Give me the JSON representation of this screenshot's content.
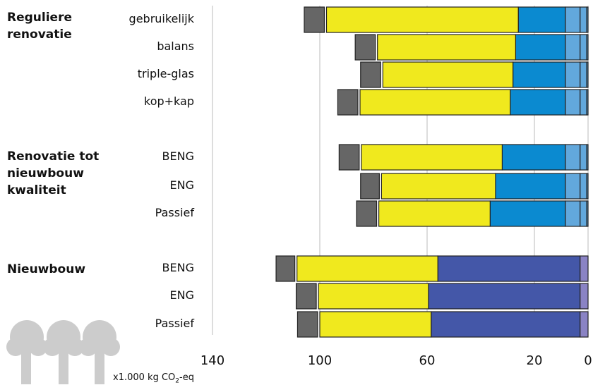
{
  "chart_data": {
    "type": "bar",
    "orientation": "horizontal",
    "stacked": true,
    "x_direction": "reversed",
    "xlim": [
      0,
      140
    ],
    "xticks": [
      140,
      100,
      60,
      20,
      0
    ],
    "unit_label": {
      "main": "x1.000 kg CO",
      "sub": "2",
      "suffix": "-eq"
    },
    "grid": "vertical",
    "colors": {
      "dark_grey": "#666666",
      "yellow": "#f0e91e",
      "blue": "#0b8ad0",
      "light_blue": "#62a8dc",
      "dark_blue": "#4457a8",
      "purple": "#8a83c4",
      "grid": "#bbbbbb",
      "outline": "#222222"
    },
    "groups": [
      {
        "title": "Reguliere\nrenovatie",
        "rows": [
          {
            "label": "gebruikelijk",
            "segments": [
              {
                "color": "light_blue",
                "value": 0.5
              },
              {
                "color": "light_blue",
                "value": 2.5
              },
              {
                "color": "light_blue",
                "value": 5.5
              },
              {
                "color": "blue",
                "value": 17.5
              },
              {
                "color": "yellow",
                "value": 71.5
              },
              {
                "color": "dark_grey",
                "value": 7.5
              }
            ]
          },
          {
            "label": "balans",
            "segments": [
              {
                "color": "light_blue",
                "value": 0.5
              },
              {
                "color": "light_blue",
                "value": 2.5
              },
              {
                "color": "light_blue",
                "value": 5.5
              },
              {
                "color": "blue",
                "value": 18.5
              },
              {
                "color": "yellow",
                "value": 51.5
              },
              {
                "color": "dark_grey",
                "value": 7.5
              }
            ]
          },
          {
            "label": "triple-glas",
            "segments": [
              {
                "color": "light_blue",
                "value": 0.5
              },
              {
                "color": "light_blue",
                "value": 2.5
              },
              {
                "color": "light_blue",
                "value": 5.5
              },
              {
                "color": "blue",
                "value": 19.5
              },
              {
                "color": "yellow",
                "value": 48.5
              },
              {
                "color": "dark_grey",
                "value": 7.5
              }
            ]
          },
          {
            "label": "kop+kap",
            "segments": [
              {
                "color": "light_blue",
                "value": 0.5
              },
              {
                "color": "light_blue",
                "value": 2.5
              },
              {
                "color": "light_blue",
                "value": 5.5
              },
              {
                "color": "blue",
                "value": 20.5
              },
              {
                "color": "yellow",
                "value": 56.0
              },
              {
                "color": "dark_grey",
                "value": 7.5
              }
            ]
          }
        ]
      },
      {
        "title": "Renovatie tot\nnieuwbouw\nkwaliteit",
        "rows": [
          {
            "label": "BENG",
            "segments": [
              {
                "color": "light_blue",
                "value": 0.5
              },
              {
                "color": "light_blue",
                "value": 2.5
              },
              {
                "color": "light_blue",
                "value": 5.5
              },
              {
                "color": "blue",
                "value": 23.5
              },
              {
                "color": "yellow",
                "value": 52.5
              },
              {
                "color": "dark_grey",
                "value": 7.5
              }
            ]
          },
          {
            "label": "ENG",
            "segments": [
              {
                "color": "light_blue",
                "value": 0.5
              },
              {
                "color": "light_blue",
                "value": 2.5
              },
              {
                "color": "light_blue",
                "value": 5.5
              },
              {
                "color": "blue",
                "value": 26.0
              },
              {
                "color": "yellow",
                "value": 42.5
              },
              {
                "color": "dark_grey",
                "value": 7.0
              }
            ]
          },
          {
            "label": "Passief",
            "segments": [
              {
                "color": "light_blue",
                "value": 0.5
              },
              {
                "color": "light_blue",
                "value": 2.5
              },
              {
                "color": "light_blue",
                "value": 5.5
              },
              {
                "color": "blue",
                "value": 28.0
              },
              {
                "color": "yellow",
                "value": 41.5
              },
              {
                "color": "dark_grey",
                "value": 7.5
              }
            ]
          }
        ]
      },
      {
        "title": "Nieuwbouw",
        "rows": [
          {
            "label": "BENG",
            "segments": [
              {
                "color": "purple",
                "value": 3.0
              },
              {
                "color": "dark_blue",
                "value": 53.0
              },
              {
                "color": "yellow",
                "value": 52.5
              },
              {
                "color": "dark_grey",
                "value": 7.0
              }
            ]
          },
          {
            "label": "ENG",
            "segments": [
              {
                "color": "purple",
                "value": 3.0
              },
              {
                "color": "dark_blue",
                "value": 56.5
              },
              {
                "color": "yellow",
                "value": 41.0
              },
              {
                "color": "dark_grey",
                "value": 7.5
              }
            ]
          },
          {
            "label": "Passief",
            "segments": [
              {
                "color": "purple",
                "value": 3.0
              },
              {
                "color": "dark_blue",
                "value": 55.5
              },
              {
                "color": "yellow",
                "value": 41.5
              },
              {
                "color": "dark_grey",
                "value": 7.5
              }
            ]
          }
        ]
      }
    ]
  }
}
